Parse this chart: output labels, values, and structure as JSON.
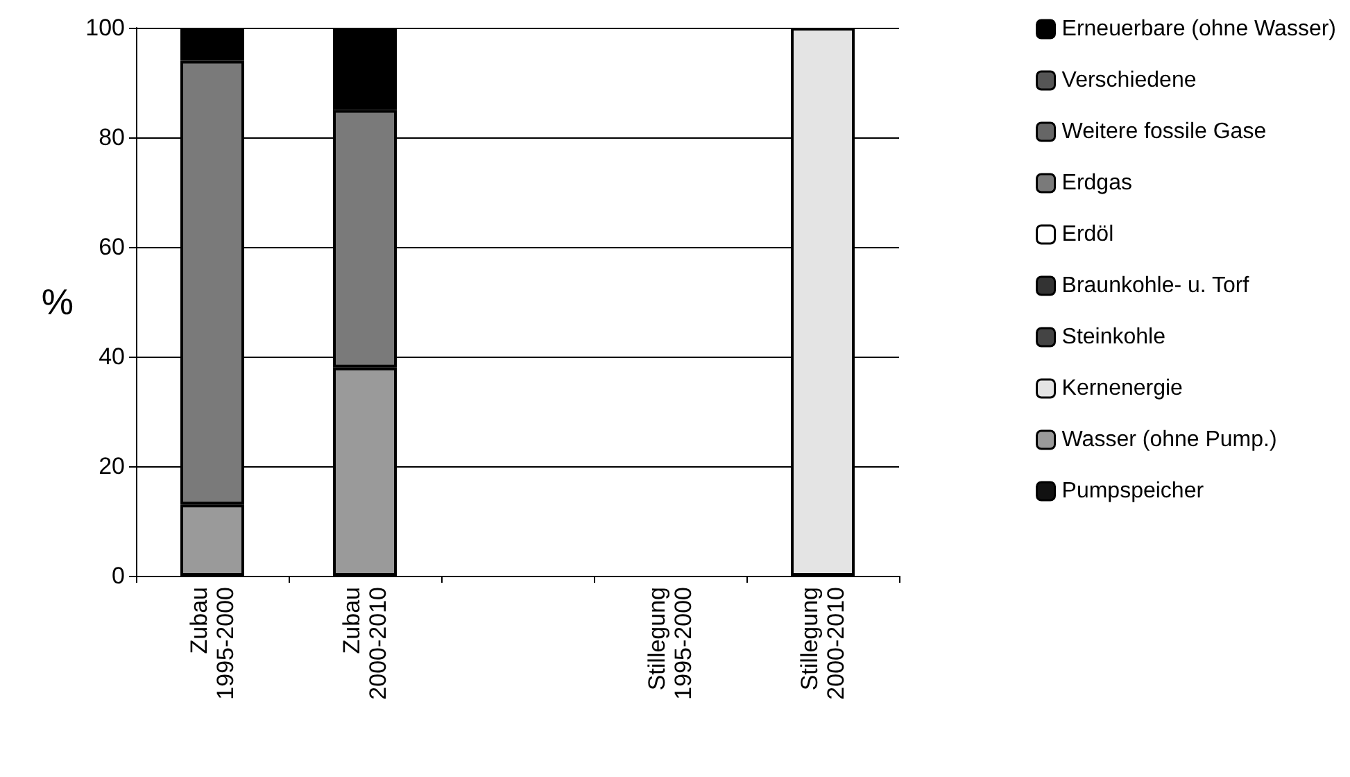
{
  "chart_data": {
    "type": "bar",
    "stacked": true,
    "ylabel": "%",
    "ylim": [
      0,
      100
    ],
    "yticks": [
      0,
      20,
      40,
      60,
      80,
      100
    ],
    "grid": "y",
    "legend": "right",
    "categories": [
      "Zubau 1995-2000",
      "Zubau 2000-2010",
      null,
      "Stillegung 1995-2000",
      "Stillegung 2000-2010"
    ],
    "series": [
      {
        "name": "Pumpspeicher",
        "color": "#111111",
        "values": [
          null,
          null,
          null,
          null,
          null
        ]
      },
      {
        "name": "Wasser (ohne Pump.)",
        "color": "#9a9a9a",
        "values": [
          13,
          38,
          null,
          null,
          null
        ]
      },
      {
        "name": "Kernenergie",
        "color": "#e4e4e4",
        "values": [
          null,
          null,
          null,
          null,
          100
        ]
      },
      {
        "name": "Steinkohle",
        "color": "#444444",
        "values": [
          null,
          null,
          null,
          null,
          null
        ]
      },
      {
        "name": "Braunkohle- u. Torf",
        "color": "#333333",
        "values": [
          null,
          null,
          null,
          null,
          null
        ]
      },
      {
        "name": "Erdöl",
        "color": "#ffffff",
        "values": [
          null,
          null,
          null,
          null,
          null
        ]
      },
      {
        "name": "Erdgas",
        "color": "#7a7a7a",
        "values": [
          81,
          47,
          null,
          null,
          null
        ]
      },
      {
        "name": "Weitere fossile Gase",
        "color": "#666666",
        "values": [
          null,
          null,
          null,
          null,
          null
        ]
      },
      {
        "name": "Verschiedene",
        "color": "#555555",
        "values": [
          null,
          null,
          null,
          null,
          null
        ]
      },
      {
        "name": "Erneuerbare (ohne Wasser)",
        "color": "#000000",
        "values": [
          6,
          15,
          null,
          null,
          null
        ]
      }
    ]
  }
}
